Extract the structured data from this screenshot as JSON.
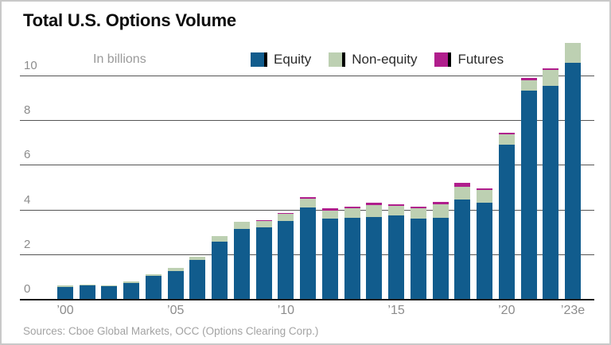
{
  "header": {
    "title": "Total U.S. Options Volume"
  },
  "chart_note": "In billions",
  "footer": {
    "source_text": "Sources: Cboe Global Markets, OCC (Options Clearing Corp.)"
  },
  "colors": {
    "equity": "#115c8d",
    "non_equity": "#bdd0b2",
    "futures": "#b01e8c",
    "grid": "#555555",
    "baseline": "#1c1c1c",
    "axis_text": "#8c8c8c",
    "muted_text": "#9a9a9a",
    "title_text": "#0d0d0d",
    "border": "#c9c9c9",
    "legend_divider": "#000000"
  },
  "chart_data": {
    "type": "bar",
    "stacked": true,
    "title": "Total U.S. Options Volume",
    "subtitle": "In billions",
    "grid": true,
    "legend_position": "top",
    "categories": [
      "2000",
      "2001",
      "2002",
      "2003",
      "2004",
      "2005",
      "2006",
      "2007",
      "2008",
      "2009",
      "2010",
      "2011",
      "2012",
      "2013",
      "2014",
      "2015",
      "2016",
      "2017",
      "2018",
      "2019",
      "2020",
      "2021",
      "2022",
      "2023e"
    ],
    "series": [
      {
        "name": "Equity",
        "color": "#115c8d",
        "values": [
          0.55,
          0.6,
          0.57,
          0.72,
          1.02,
          1.25,
          1.73,
          2.55,
          3.12,
          3.2,
          3.47,
          4.11,
          3.6,
          3.63,
          3.65,
          3.75,
          3.58,
          3.63,
          4.45,
          4.31,
          6.89,
          9.31,
          9.55,
          10.56
        ]
      },
      {
        "name": "Non-equity",
        "color": "#bdd0b2",
        "values": [
          0.05,
          0.05,
          0.05,
          0.06,
          0.08,
          0.15,
          0.15,
          0.25,
          0.33,
          0.32,
          0.33,
          0.36,
          0.36,
          0.42,
          0.55,
          0.41,
          0.47,
          0.62,
          0.58,
          0.55,
          0.47,
          0.48,
          0.69,
          0.89
        ]
      },
      {
        "name": "Futures",
        "color": "#b01e8c",
        "values": [
          0,
          0,
          0,
          0,
          0,
          0,
          0,
          0,
          0,
          0.02,
          0.06,
          0.08,
          0.08,
          0.07,
          0.09,
          0.08,
          0.08,
          0.09,
          0.15,
          0.08,
          0.08,
          0.09,
          0.08,
          0
        ]
      }
    ],
    "yticks": [
      0,
      2,
      4,
      6,
      8,
      10
    ],
    "ylim": [
      0,
      11.6
    ],
    "x_tick_labels": [
      {
        "index": 0,
        "label": "’00"
      },
      {
        "index": 5,
        "label": "’05"
      },
      {
        "index": 10,
        "label": "’10"
      },
      {
        "index": 15,
        "label": "’15"
      },
      {
        "index": 20,
        "label": "’20"
      },
      {
        "index": 23,
        "label": "’23e"
      }
    ]
  }
}
